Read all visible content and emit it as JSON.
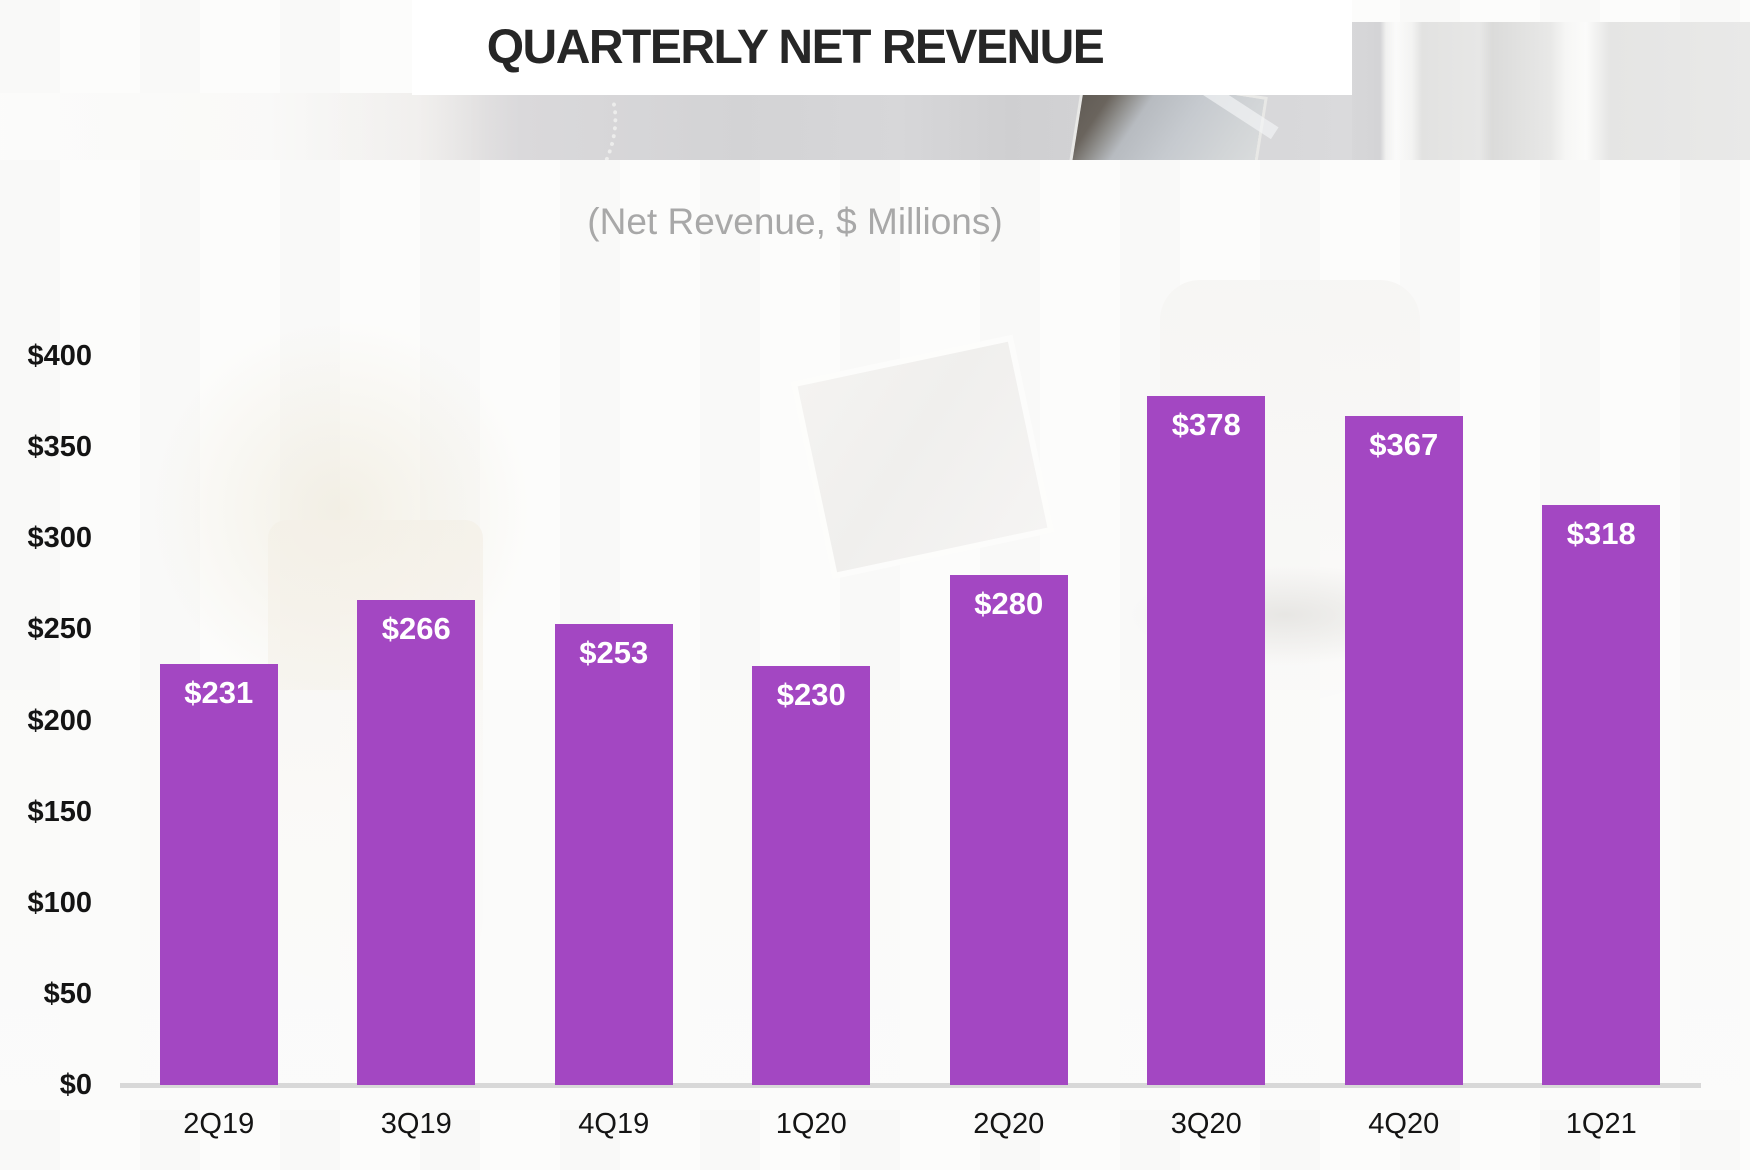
{
  "slide": {
    "title": "QUARTERLY NET REVENUE",
    "subtitle": "(Net Revenue, $ Millions)"
  },
  "chart_data": {
    "type": "bar",
    "title": "QUARTERLY NET REVENUE",
    "subtitle": "(Net Revenue, $ Millions)",
    "categories": [
      "2Q19",
      "3Q19",
      "4Q19",
      "1Q20",
      "2Q20",
      "3Q20",
      "4Q20",
      "1Q21"
    ],
    "values": [
      231,
      266,
      253,
      230,
      280,
      378,
      367,
      318
    ],
    "data_labels": [
      "$231",
      "$266",
      "$253",
      "$230",
      "$280",
      "$378",
      "$367",
      "$318"
    ],
    "xlabel": "",
    "ylabel": "",
    "ylim": [
      0,
      400
    ],
    "y_tick_step": 50,
    "y_ticks": [
      {
        "value": 0,
        "label": "$0"
      },
      {
        "value": 50,
        "label": "$50"
      },
      {
        "value": 100,
        "label": "$100"
      },
      {
        "value": 150,
        "label": "$150"
      },
      {
        "value": 200,
        "label": "$200"
      },
      {
        "value": 250,
        "label": "$250"
      },
      {
        "value": 300,
        "label": "$300"
      },
      {
        "value": 350,
        "label": "$350"
      },
      {
        "value": 400,
        "label": "$400"
      }
    ],
    "grid": false,
    "legend": "none",
    "colors": {
      "bar": "#A347C2",
      "data_label": "#FFFFFF",
      "axis_line": "#D8D8D8",
      "tick_text": "#141414",
      "title_text": "#262626",
      "subtitle_text": "#A8A8A8"
    }
  }
}
